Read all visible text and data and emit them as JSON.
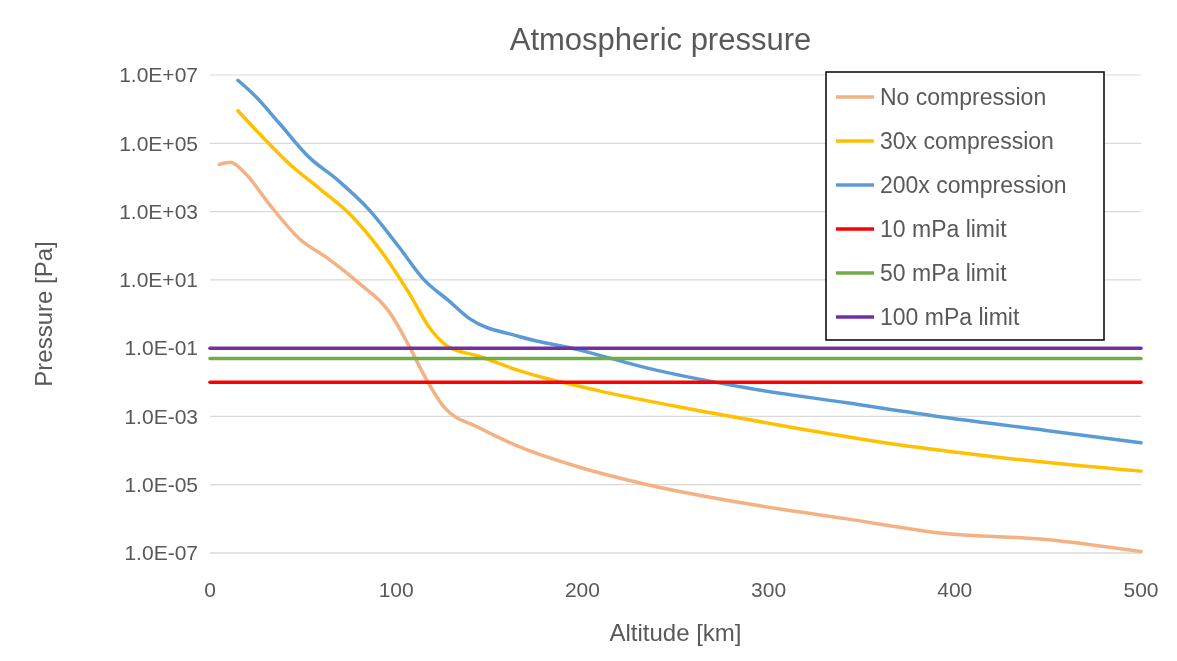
{
  "chart_data": {
    "type": "line",
    "title": "Atmospheric pressure",
    "xlabel": "Altitude [km]",
    "ylabel": "Pressure [Pa]",
    "log": "y",
    "grid": "y",
    "legend": "top right",
    "marker": "none",
    "line_style": "solid",
    "xlim": [
      0,
      500
    ],
    "xticks": [
      0,
      100,
      200,
      300,
      400,
      500
    ],
    "ylim": [
      1e-07,
      10000000.0
    ],
    "yticks": [
      {
        "value": 10000000.0,
        "label": "1.0E+07"
      },
      {
        "value": 100000.0,
        "label": "1.0E+05"
      },
      {
        "value": 1000.0,
        "label": "1.0E+03"
      },
      {
        "value": 10.0,
        "label": "1.0E+01"
      },
      {
        "value": 0.1,
        "label": "1.0E-01"
      },
      {
        "value": 0.001,
        "label": "1.0E-03"
      },
      {
        "value": 1e-05,
        "label": "1.0E-05"
      },
      {
        "value": 1e-07,
        "label": "1.0E-07"
      }
    ],
    "series": [
      {
        "name": "No compression",
        "color": "#f4b183",
        "x": [
          5,
          11,
          19,
          32,
          48,
          64,
          80,
          96,
          101.5,
          108,
          115,
          126,
          144,
          166,
          198,
          235,
          288,
          342,
          395,
          449,
          500
        ],
        "values": [
          24000,
          28000,
          13000,
          1600,
          160,
          40,
          8,
          1.2,
          0.4,
          0.089,
          0.016,
          0.0018,
          0.00048,
          0.00013,
          3.3e-05,
          1e-05,
          2.8e-06,
          1e-06,
          3.7e-07,
          2.5e-07,
          1.1e-07
        ]
      },
      {
        "name": "30x compression",
        "color": "#ffc000",
        "x": [
          15,
          27,
          43,
          59,
          75,
          91,
          107,
          118,
          128,
          144,
          166,
          208,
          262,
          315,
          369,
          422,
          500
        ],
        "values": [
          900000,
          180000,
          24000,
          4600,
          850,
          81,
          4,
          0.39,
          0.11,
          0.059,
          0.022,
          0.0058,
          0.0015,
          0.00045,
          0.00015,
          6.5e-05,
          2.5e-05
        ]
      },
      {
        "name": "200x compression",
        "color": "#5b9bd5",
        "x": [
          15,
          24,
          37,
          53,
          69,
          85,
          101,
          115,
          128,
          139,
          166,
          198,
          235,
          288,
          342,
          395,
          449,
          500
        ],
        "values": [
          7000000,
          2500000,
          400000,
          40000,
          8000,
          1200,
          100,
          10,
          2.5,
          0.76,
          0.22,
          0.089,
          0.026,
          0.0069,
          0.0025,
          0.00093,
          0.00039,
          0.00017
        ]
      },
      {
        "name": "10 mPa limit",
        "color": "#ff0000",
        "x": [
          0,
          500
        ],
        "values": [
          0.01,
          0.01
        ]
      },
      {
        "name": "50 mPa limit",
        "color": "#70ad47",
        "x": [
          0,
          500
        ],
        "values": [
          0.05,
          0.05
        ]
      },
      {
        "name": "100 mPa limit",
        "color": "#7030a0",
        "x": [
          0,
          500
        ],
        "values": [
          0.1,
          0.1
        ]
      }
    ]
  }
}
